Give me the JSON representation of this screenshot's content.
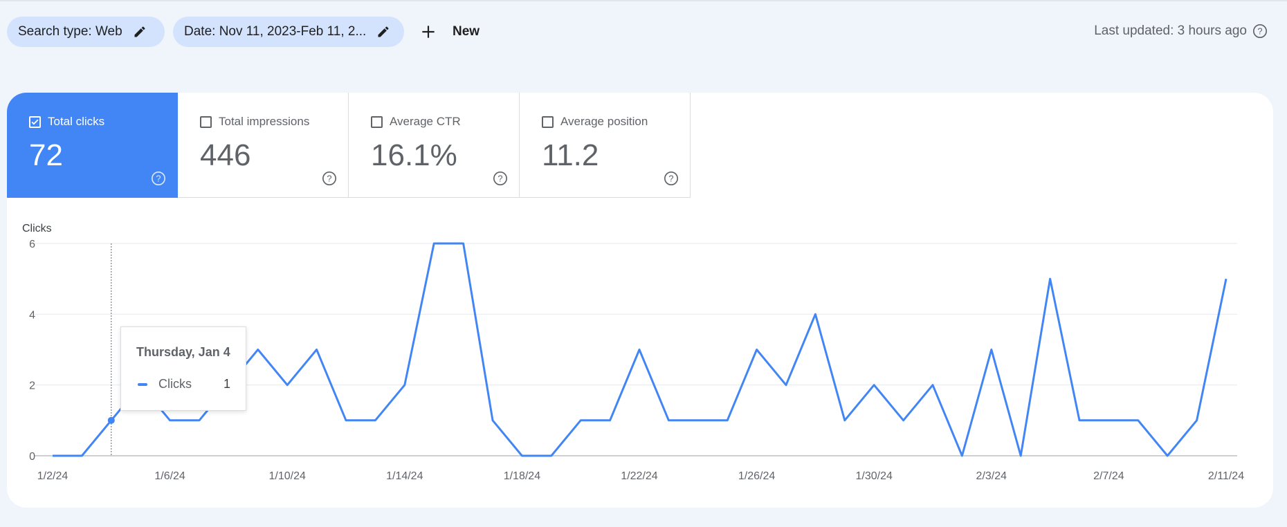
{
  "filters": {
    "search_type": "Search type: Web",
    "date": "Date: Nov 11, 2023-Feb 11, 2...",
    "new_label": "New"
  },
  "last_updated": "Last updated: 3 hours ago",
  "metrics": [
    {
      "label": "Total clicks",
      "value": "72",
      "checked": true
    },
    {
      "label": "Total impressions",
      "value": "446",
      "checked": false
    },
    {
      "label": "Average CTR",
      "value": "16.1%",
      "checked": false
    },
    {
      "label": "Average position",
      "value": "11.2",
      "checked": false
    }
  ],
  "colors": {
    "accent": "#4285f4",
    "chip": "#d3e3fd",
    "background": "#f0f4fb"
  },
  "chart_data": {
    "type": "line",
    "ylabel": "Clicks",
    "ylim": [
      0,
      6
    ],
    "yticks": [
      0,
      2,
      4,
      6
    ],
    "grid": true,
    "xtick_labels": [
      "1/2/24",
      "1/6/24",
      "1/10/24",
      "1/14/24",
      "1/18/24",
      "1/22/24",
      "1/26/24",
      "1/30/24",
      "2/3/24",
      "2/7/24",
      "2/11/24"
    ],
    "x": [
      "1/2/24",
      "1/3/24",
      "1/4/24",
      "1/5/24",
      "1/6/24",
      "1/7/24",
      "1/8/24",
      "1/9/24",
      "1/10/24",
      "1/11/24",
      "1/12/24",
      "1/13/24",
      "1/14/24",
      "1/15/24",
      "1/16/24",
      "1/17/24",
      "1/18/24",
      "1/19/24",
      "1/20/24",
      "1/21/24",
      "1/22/24",
      "1/23/24",
      "1/24/24",
      "1/25/24",
      "1/26/24",
      "1/27/24",
      "1/28/24",
      "1/29/24",
      "1/30/24",
      "1/31/24",
      "2/1/24",
      "2/2/24",
      "2/3/24",
      "2/4/24",
      "2/5/24",
      "2/6/24",
      "2/7/24",
      "2/8/24",
      "2/9/24",
      "2/10/24",
      "2/11/24"
    ],
    "series": [
      {
        "name": "Clicks",
        "values": [
          0,
          0,
          1,
          2,
          1,
          1,
          2,
          3,
          2,
          3,
          1,
          1,
          2,
          6,
          6,
          1,
          0,
          0,
          1,
          1,
          3,
          1,
          1,
          1,
          3,
          2,
          4,
          1,
          2,
          1,
          2,
          0,
          3,
          0,
          5,
          1,
          1,
          1,
          0,
          1,
          5
        ]
      }
    ],
    "tooltip": {
      "date": "Thursday, Jan 4",
      "series": "Clicks",
      "value": "1"
    }
  }
}
